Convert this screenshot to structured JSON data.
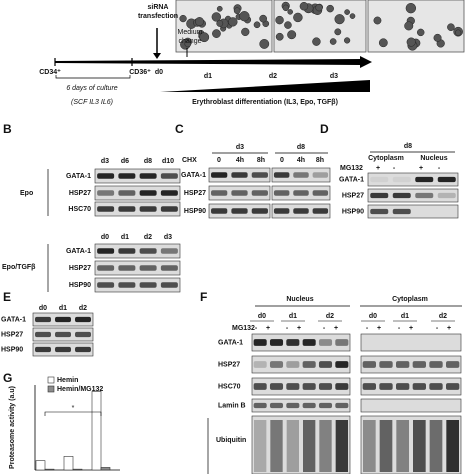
{
  "panel_a": {
    "sirna": [
      "siRNA",
      "transfection"
    ],
    "medium": [
      "Medium",
      "change"
    ],
    "cd34": "CD34⁺",
    "cd36": "CD36⁺",
    "days": [
      "d0",
      "d1",
      "d2",
      "d3"
    ],
    "culture": "6 days of culture",
    "cytokines": "(SCF IL3 IL6)",
    "differentiation": "Erythroblast differentiation (IL3, Epo, TGFβ)"
  },
  "panel_b": {
    "label": "B",
    "lanes_top": [
      "d3",
      "d6",
      "d8",
      "d10"
    ],
    "rows_top": [
      "GATA-1",
      "HSP27",
      "HSC70"
    ],
    "condition_top": "Epo",
    "lanes_bottom": [
      "d0",
      "d1",
      "d2",
      "d3"
    ],
    "rows_bottom": [
      "GATA-1",
      "HSP27",
      "HSP90"
    ],
    "condition_bottom": "Epo/TGFβ"
  },
  "panel_c": {
    "label": "C",
    "days": [
      "d3",
      "d8"
    ],
    "treatment": "CHX",
    "lanes": [
      "0",
      "4h",
      "8h",
      "0",
      "4h",
      "8h"
    ],
    "rows": [
      "GATA-1",
      "HSP27",
      "HSP90"
    ]
  },
  "panel_d": {
    "label": "D",
    "day": "d8",
    "fractions": [
      "Cytoplasm",
      "Nucleus"
    ],
    "treatment": "MG132",
    "signs": [
      "+",
      "-",
      "+",
      "-"
    ],
    "rows": [
      "GATA-1",
      "HSP27",
      "HSP90"
    ]
  },
  "panel_e": {
    "label": "E",
    "lanes": [
      "d0",
      "d1",
      "d2"
    ],
    "rows": [
      "GATA-1",
      "HSP27",
      "HSP90"
    ]
  },
  "panel_f": {
    "label": "F",
    "fractions": [
      "Nucleus",
      "Cytoplasm"
    ],
    "days": [
      "d0",
      "d1",
      "d2",
      "d0",
      "d1",
      "d2"
    ],
    "treatment": "MG132",
    "signs": [
      "-",
      "+",
      "-",
      "+",
      "-",
      "+",
      "-",
      "+",
      "-",
      "+",
      "-",
      "+"
    ],
    "rows": [
      "GATA-1",
      "HSP27",
      "HSC70",
      "Lamin B",
      "Ubiquitin"
    ]
  },
  "panel_g": {
    "label": "G",
    "type": "bar",
    "y_label": "Proteasome activity (a.u)",
    "annotation": "*",
    "categories": [
      null,
      null,
      null
    ],
    "ylim": [
      0,
      2000
    ],
    "series": [
      {
        "name": "Hemin",
        "color": "#ffffff",
        "values": [
          220,
          320,
          1850
        ]
      },
      {
        "name": "Hemin/MG132",
        "color": "#8c8c8c",
        "values": [
          20,
          20,
          60
        ]
      }
    ]
  }
}
